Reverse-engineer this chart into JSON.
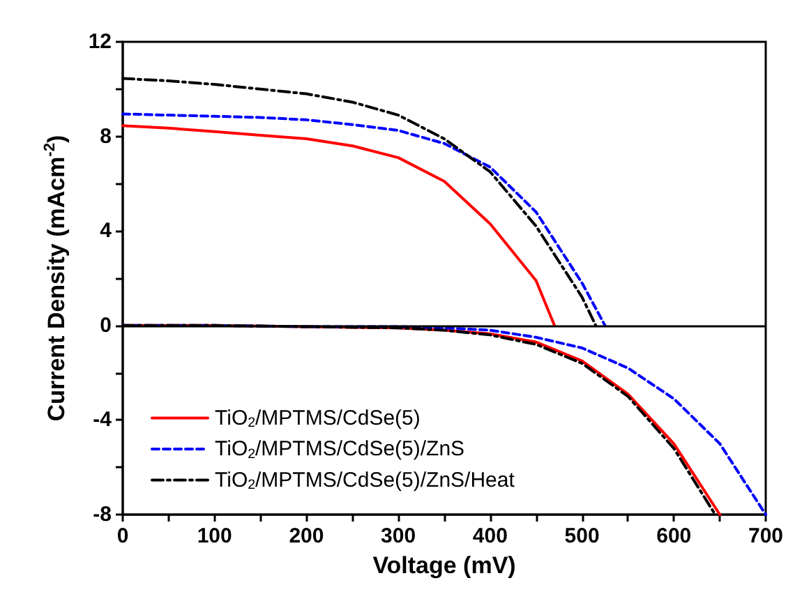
{
  "chart_data": {
    "type": "line",
    "xlabel": "Voltage (mV)",
    "ylabel": "Current Density (mAcm$^{-2}$)",
    "xlim": [
      0,
      700
    ],
    "ylim": [
      -8,
      12
    ],
    "xticks": [
      0,
      {
        "value": 50,
        "label": null
      },
      100,
      {
        "value": 150,
        "label": null
      },
      200,
      {
        "value": 250,
        "label": null
      },
      300,
      {
        "value": 350,
        "label": null
      },
      400,
      {
        "value": 450,
        "label": null
      },
      500,
      {
        "value": 550,
        "label": null
      },
      600,
      {
        "value": 650,
        "label": null
      },
      700
    ],
    "yticks": [
      -8,
      {
        "value": -6,
        "label": null
      },
      -4,
      {
        "value": -2,
        "label": null
      },
      0,
      {
        "value": 2,
        "label": null
      },
      4,
      {
        "value": 6,
        "label": null
      },
      8,
      {
        "value": 10,
        "label": null
      },
      12
    ],
    "grid": false,
    "legend": "bottom left",
    "marker": "none",
    "ref_lines": [
      {
        "axis": "y",
        "value": 0,
        "color": "#000000",
        "line_style": "solid"
      }
    ],
    "series": [
      {
        "name": "TiO$_{2}$/MPTMS/CdSe(5)",
        "color": "#ff0000",
        "line_style": "solid",
        "x": [
          0,
          50,
          100,
          150,
          200,
          250,
          300,
          350,
          400,
          450,
          470
        ],
        "values": [
          8.45,
          8.35,
          8.2,
          8.05,
          7.9,
          7.6,
          7.1,
          6.1,
          4.3,
          1.9,
          0
        ]
      },
      {
        "name": "TiO$_{2}$/MPTMS/CdSe(5)/ZnS",
        "color": "#0000ff",
        "line_style": "dashed",
        "x": [
          0,
          50,
          100,
          150,
          200,
          250,
          300,
          350,
          400,
          450,
          500,
          525
        ],
        "values": [
          8.95,
          8.9,
          8.85,
          8.8,
          8.7,
          8.5,
          8.25,
          7.7,
          6.7,
          4.8,
          1.8,
          0
        ]
      },
      {
        "name": "TiO$_{2}$/MPTMS/CdSe(5)/ZnS/Heat",
        "color": "#000000",
        "line_style": "dashdot",
        "x": [
          0,
          50,
          100,
          150,
          200,
          250,
          300,
          350,
          400,
          450,
          500,
          515
        ],
        "values": [
          10.45,
          10.35,
          10.2,
          10.0,
          9.8,
          9.45,
          8.9,
          7.9,
          6.5,
          4.2,
          1.2,
          0
        ]
      },
      {
        "color": "#ff0000",
        "line_style": "solid",
        "x": [
          0,
          100,
          300,
          350,
          400,
          450,
          500,
          550,
          600,
          650
        ],
        "values": [
          0,
          0,
          -0.1,
          -0.2,
          -0.35,
          -0.7,
          -1.5,
          -2.9,
          -5.0,
          -8
        ]
      },
      {
        "color": "#0000ff",
        "line_style": "dashed",
        "x": [
          0,
          100,
          200,
          300,
          350,
          400,
          450,
          500,
          550,
          600,
          650,
          700
        ],
        "values": [
          0,
          0,
          -0.05,
          -0.05,
          -0.1,
          -0.2,
          -0.5,
          -0.95,
          -1.8,
          -3.1,
          -5.0,
          -8
        ]
      },
      {
        "color": "#000000",
        "line_style": "dashdot",
        "x": [
          0,
          100,
          200,
          300,
          350,
          400,
          450,
          500,
          550,
          600,
          645
        ],
        "values": [
          0,
          0,
          -0.05,
          -0.1,
          -0.2,
          -0.4,
          -0.8,
          -1.6,
          -3.0,
          -5.2,
          -8
        ]
      }
    ]
  }
}
